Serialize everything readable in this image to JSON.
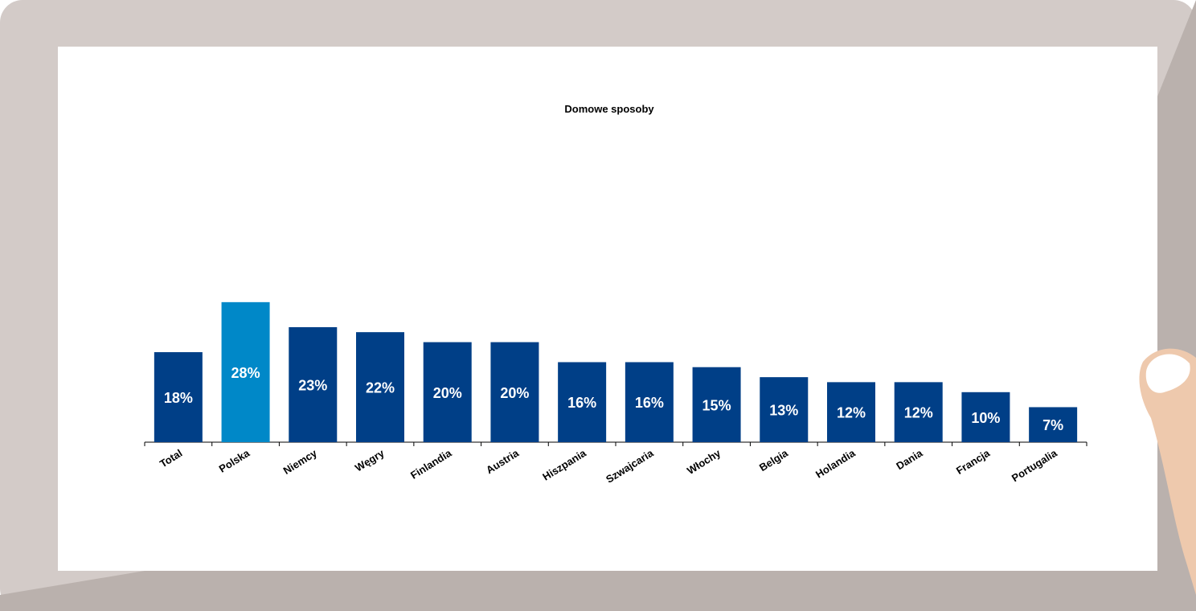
{
  "chart_data": {
    "type": "bar",
    "title": "Domowe sposoby",
    "categories": [
      "Total",
      "Polska",
      "Niemcy",
      "Węgry",
      "Finlandia",
      "Austria",
      "Hiszpania",
      "Szwajcaria",
      "Włochy",
      "Belgia",
      "Holandia",
      "Dania",
      "Francja",
      "Portugalia"
    ],
    "values": [
      18,
      28,
      23,
      22,
      20,
      20,
      16,
      16,
      15,
      13,
      12,
      12,
      10,
      7
    ],
    "value_labels": [
      "18%",
      "28%",
      "23%",
      "22%",
      "20%",
      "20%",
      "16%",
      "16%",
      "15%",
      "13%",
      "12%",
      "12%",
      "10%",
      "7%"
    ],
    "colors": [
      "#003f87",
      "#0088c8",
      "#003f87",
      "#003f87",
      "#003f87",
      "#003f87",
      "#003f87",
      "#003f87",
      "#003f87",
      "#003f87",
      "#003f87",
      "#003f87",
      "#003f87",
      "#003f87"
    ]
  }
}
